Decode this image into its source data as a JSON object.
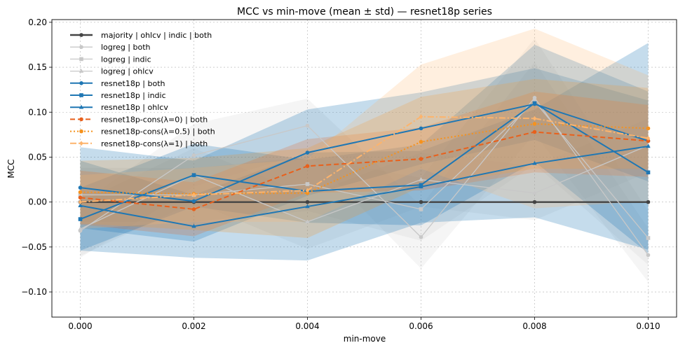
{
  "chart_data": {
    "type": "line",
    "title": "MCC vs min-move (mean ± std) — resnet18p series",
    "xlabel": "min-move",
    "ylabel": "MCC",
    "x": [
      0.0,
      0.002,
      0.004,
      0.006,
      0.008,
      0.01
    ],
    "xticks": [
      "0.000",
      "0.002",
      "0.004",
      "0.006",
      "0.008",
      "0.010"
    ],
    "yticks": [
      "−0.10",
      "−0.05",
      "0.00",
      "0.05",
      "0.10",
      "0.15",
      "0.20"
    ],
    "ytick_values": [
      -0.1,
      -0.05,
      0.0,
      0.05,
      0.1,
      0.15,
      0.2
    ],
    "xlim": [
      -0.0005,
      0.0105
    ],
    "ylim": [
      -0.128,
      0.203
    ],
    "grid": true,
    "legend_position": "upper-left",
    "series": [
      {
        "name": "majority | ohlcv | indic | both",
        "color": "#444444",
        "style": "solid",
        "marker": "circle",
        "width": 2.4,
        "values": [
          0.0,
          0.0,
          0.0,
          0.0,
          0.0,
          0.0
        ],
        "std": null
      },
      {
        "name": "logreg | both",
        "color": "#c8c8c8",
        "style": "solid",
        "marker": "circle",
        "width": 1.3,
        "values": [
          -0.032,
          0.052,
          0.085,
          -0.039,
          0.116,
          -0.059
        ],
        "std": [
          0.03,
          0.035,
          0.03,
          0.035,
          0.04,
          0.03
        ]
      },
      {
        "name": "logreg | indic",
        "color": "#c8c8c8",
        "style": "solid",
        "marker": "square",
        "width": 1.3,
        "values": [
          0.008,
          0.008,
          0.02,
          -0.008,
          0.112,
          -0.04
        ],
        "std": [
          0.03,
          0.03,
          0.03,
          0.035,
          0.07,
          0.03
        ]
      },
      {
        "name": "logreg | ohlcv",
        "color": "#c8c8c8",
        "style": "solid",
        "marker": "triangle",
        "width": 1.3,
        "values": [
          -0.03,
          0.03,
          -0.022,
          0.025,
          0.01,
          0.063
        ],
        "std": [
          0.03,
          0.03,
          0.03,
          0.03,
          0.03,
          0.03
        ]
      },
      {
        "name": "resnet18p | both",
        "color": "#1f77b4",
        "style": "solid",
        "marker": "circle",
        "width": 2.0,
        "values": [
          0.016,
          0.001,
          0.055,
          0.082,
          0.109,
          0.068
        ],
        "std": [
          0.045,
          0.045,
          0.048,
          0.04,
          0.04,
          0.045
        ]
      },
      {
        "name": "resnet18p | indic",
        "color": "#1f77b4",
        "style": "solid",
        "marker": "square",
        "width": 2.0,
        "values": [
          -0.019,
          0.03,
          0.012,
          0.019,
          0.11,
          0.033
        ],
        "std": [
          0.035,
          0.035,
          0.035,
          0.045,
          0.065,
          0.09
        ]
      },
      {
        "name": "resnet18p | ohlcv",
        "color": "#1f77b4",
        "style": "solid",
        "marker": "triangle",
        "width": 2.0,
        "values": [
          -0.004,
          -0.027,
          -0.005,
          0.017,
          0.043,
          0.062
        ],
        "std": [
          0.05,
          0.035,
          0.06,
          0.04,
          0.06,
          0.115
        ]
      },
      {
        "name": "resnet18p-cons(λ=0) | both",
        "color": "#e8601c",
        "style": "dashed",
        "marker": "circle",
        "width": 2.0,
        "values": [
          0.005,
          -0.008,
          0.04,
          0.048,
          0.078,
          0.068
        ],
        "std": [
          0.03,
          0.03,
          0.03,
          0.035,
          0.045,
          0.04
        ]
      },
      {
        "name": "resnet18p-cons(λ=0.5) | both",
        "color": "#f5921e",
        "style": "dotted",
        "marker": "circle",
        "width": 2.0,
        "values": [
          0.011,
          0.009,
          0.01,
          0.067,
          0.087,
          0.082
        ],
        "std": [
          0.035,
          0.04,
          0.05,
          0.05,
          0.05,
          0.045
        ]
      },
      {
        "name": "resnet18p-cons(λ=1) | both",
        "color": "#fdb46c",
        "style": "dashdot",
        "marker": "diamond",
        "width": 2.0,
        "values": [
          0.0,
          0.008,
          0.013,
          0.095,
          0.093,
          0.071
        ],
        "std": [
          0.03,
          0.03,
          0.035,
          0.058,
          0.1,
          0.07
        ]
      }
    ]
  }
}
